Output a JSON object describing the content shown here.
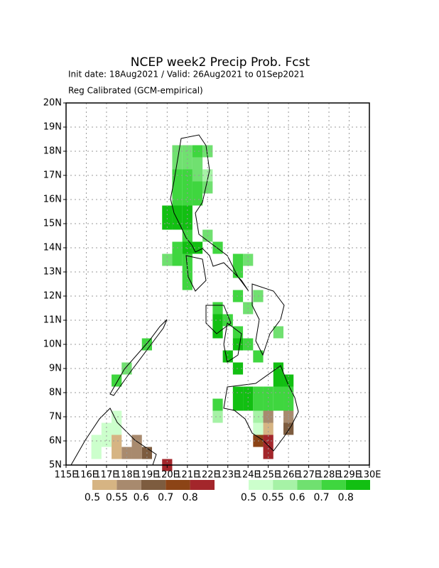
{
  "chart_data": {
    "type": "map",
    "title": "NCEP week2 Precip Prob. Fcst",
    "subtitle": "Init date: 18Aug2021 / Valid: 26Aug2021 to 01Sep2021",
    "subtitle2": "Reg Calibrated (GCM-empirical)",
    "xlim": [
      115,
      130
    ],
    "ylim": [
      5,
      20
    ],
    "xticks": [
      {
        "value": 115,
        "label": "115E"
      },
      {
        "value": 116,
        "label": "116E"
      },
      {
        "value": 117,
        "label": "117E"
      },
      {
        "value": 118,
        "label": "118E"
      },
      {
        "value": 119,
        "label": "119E"
      },
      {
        "value": 120,
        "label": "120E"
      },
      {
        "value": 121,
        "label": "121E"
      },
      {
        "value": 122,
        "label": "122E"
      },
      {
        "value": 123,
        "label": "123E"
      },
      {
        "value": 124,
        "label": "124E"
      },
      {
        "value": 125,
        "label": "125E"
      },
      {
        "value": 126,
        "label": "126E"
      },
      {
        "value": 127,
        "label": "127E"
      },
      {
        "value": 128,
        "label": "128E"
      },
      {
        "value": 129,
        "label": "129E"
      },
      {
        "value": 130,
        "label": "130E"
      }
    ],
    "yticks": [
      {
        "value": 5,
        "label": "5N"
      },
      {
        "value": 6,
        "label": "6N"
      },
      {
        "value": 7,
        "label": "7N"
      },
      {
        "value": 8,
        "label": "8N"
      },
      {
        "value": 9,
        "label": "9N"
      },
      {
        "value": 10,
        "label": "10N"
      },
      {
        "value": 11,
        "label": "11N"
      },
      {
        "value": 12,
        "label": "12N"
      },
      {
        "value": 13,
        "label": "13N"
      },
      {
        "value": 14,
        "label": "14N"
      },
      {
        "value": 15,
        "label": "15N"
      },
      {
        "value": 16,
        "label": "16N"
      },
      {
        "value": 17,
        "label": "17N"
      },
      {
        "value": 18,
        "label": "18N"
      },
      {
        "value": 19,
        "label": "19N"
      },
      {
        "value": 20,
        "label": "20N"
      }
    ],
    "grid": true,
    "cell_size": 0.5,
    "dry_levels": [
      0.5,
      0.55,
      0.6,
      0.7,
      0.8
    ],
    "dry_colors": [
      "#d6b483",
      "#a88a6e",
      "#7d5c3f",
      "#8c4416",
      "#a3262b"
    ],
    "wet_levels": [
      0.5,
      0.55,
      0.6,
      0.7,
      0.8
    ],
    "wet_colors": [
      "#ccffcc",
      "#a6f2a6",
      "#70e070",
      "#3fd63f",
      "#12bf12"
    ],
    "wet_cells": [
      [
        120.5,
        18,
        0.6
      ],
      [
        121,
        18,
        0.6
      ],
      [
        121.5,
        18,
        0.7
      ],
      [
        122,
        18,
        0.6
      ],
      [
        120.5,
        17.5,
        0.6
      ],
      [
        121,
        17.5,
        0.6
      ],
      [
        121.5,
        17.5,
        0.6
      ],
      [
        120.5,
        17,
        0.7
      ],
      [
        121,
        17,
        0.7
      ],
      [
        121.5,
        17,
        0.6
      ],
      [
        122,
        17,
        0.55
      ],
      [
        120.5,
        16.5,
        0.7
      ],
      [
        121,
        16.5,
        0.7
      ],
      [
        121.5,
        16.5,
        0.7
      ],
      [
        122,
        16.5,
        0.6
      ],
      [
        120.5,
        16,
        0.7
      ],
      [
        121,
        16,
        0.7
      ],
      [
        121.5,
        16,
        0.7
      ],
      [
        120,
        15.5,
        0.8
      ],
      [
        120.5,
        15.5,
        0.8
      ],
      [
        121,
        15.5,
        0.8
      ],
      [
        120,
        15,
        0.8
      ],
      [
        120.5,
        15,
        0.8
      ],
      [
        121,
        15,
        0.8
      ],
      [
        121,
        14.5,
        0.7
      ],
      [
        122,
        14.5,
        0.6
      ],
      [
        120.5,
        14,
        0.7
      ],
      [
        121,
        14,
        0.8
      ],
      [
        121.5,
        14,
        0.8
      ],
      [
        122.5,
        14,
        0.7
      ],
      [
        120,
        13.5,
        0.6
      ],
      [
        120.5,
        13.5,
        0.7
      ],
      [
        121,
        13.5,
        0.7
      ],
      [
        123.5,
        13.5,
        0.7
      ],
      [
        124,
        13.5,
        0.6
      ],
      [
        121,
        13,
        0.7
      ],
      [
        123.5,
        13,
        0.7
      ],
      [
        121,
        12.5,
        0.7
      ],
      [
        123.5,
        12,
        0.7
      ],
      [
        124.5,
        12,
        0.6
      ],
      [
        122.5,
        11.5,
        0.7
      ],
      [
        124,
        11.5,
        0.6
      ],
      [
        122.5,
        11,
        0.8
      ],
      [
        123,
        11,
        0.7
      ],
      [
        122.5,
        10.5,
        0.8
      ],
      [
        123.5,
        10.5,
        0.7
      ],
      [
        125.5,
        10.5,
        0.6
      ],
      [
        123.5,
        10,
        0.8
      ],
      [
        124,
        10,
        0.7
      ],
      [
        119,
        10,
        0.7
      ],
      [
        123,
        9.5,
        0.8
      ],
      [
        124.5,
        9.5,
        0.7
      ],
      [
        118,
        9,
        0.6
      ],
      [
        123.5,
        9,
        0.8
      ],
      [
        125.5,
        9,
        0.8
      ],
      [
        117.5,
        8.5,
        0.7
      ],
      [
        125.5,
        8.5,
        0.8
      ],
      [
        126,
        8.5,
        0.8
      ],
      [
        123.5,
        8,
        0.8
      ],
      [
        124,
        8,
        0.8
      ],
      [
        124.5,
        8,
        0.7
      ],
      [
        125,
        8,
        0.7
      ],
      [
        125.5,
        8,
        0.7
      ],
      [
        126,
        8,
        0.7
      ],
      [
        122.5,
        7.5,
        0.7
      ],
      [
        123.5,
        7.5,
        0.8
      ],
      [
        124,
        7.5,
        0.8
      ],
      [
        124.5,
        7.5,
        0.7
      ],
      [
        125,
        7.5,
        0.7
      ],
      [
        125.5,
        7.5,
        0.7
      ],
      [
        126,
        7.5,
        0.7
      ],
      [
        122.5,
        7,
        0.55
      ],
      [
        124.5,
        7,
        0.55
      ],
      [
        117.5,
        7,
        0.5
      ],
      [
        124.5,
        6.5,
        0.5
      ],
      [
        117,
        6.5,
        0.5
      ],
      [
        117.5,
        6.5,
        0.5
      ],
      [
        116.5,
        6,
        0.5
      ],
      [
        117,
        6,
        0.5
      ],
      [
        116.5,
        5.5,
        0.5
      ]
    ],
    "dry_cells": [
      [
        117.5,
        6,
        0.5
      ],
      [
        117.5,
        5.5,
        0.5
      ],
      [
        118,
        5.5,
        0.55
      ],
      [
        118.5,
        5.5,
        0.55
      ],
      [
        118.5,
        6,
        0.55
      ],
      [
        119,
        5.5,
        0.6
      ],
      [
        120,
        5,
        0.8
      ],
      [
        124.5,
        6,
        0.7
      ],
      [
        125,
        6,
        0.8
      ],
      [
        125,
        6.5,
        0.5
      ],
      [
        125,
        5.5,
        0.8
      ],
      [
        125,
        7,
        0.55
      ],
      [
        126,
        7,
        0.55
      ],
      [
        126,
        6.5,
        0.6
      ]
    ]
  }
}
